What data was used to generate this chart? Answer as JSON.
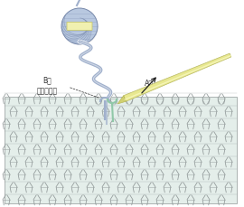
{
  "bg_color": "#ffffff",
  "label_B": "B糸\n（足す糸）",
  "label_A": "A糸",
  "yarn_ball_color": "#b8c8e0",
  "yarn_ball_band_color": "#f0f0b0",
  "yarn_blue": "#a0b0cc",
  "yarn_green": "#90c8a8",
  "needle_color": "#e8e890",
  "knit_fill": "#d8e8e0",
  "knit_line": "#909898",
  "knit_bg": "#e4eeea",
  "arrow_color": "#202020",
  "text_color": "#303030",
  "label_fontsize": 5.5,
  "figsize": [
    2.7,
    2.3
  ],
  "dpi": 100
}
